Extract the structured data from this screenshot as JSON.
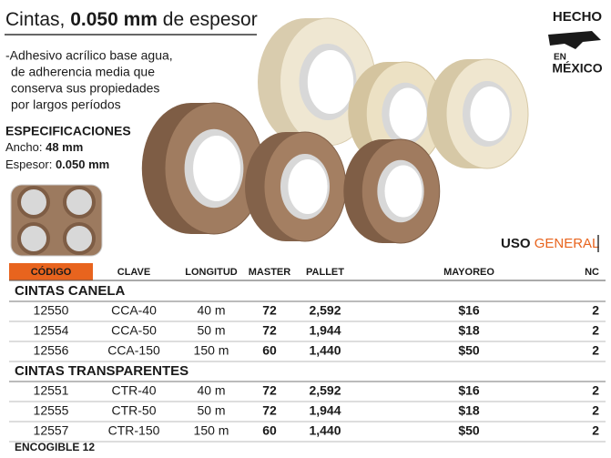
{
  "header": {
    "title": [
      "Cintas,",
      "0.050 mm",
      "de espesor"
    ]
  },
  "description": [
    "-Adhesivo acrílico base agua,",
    "de adherencia media que",
    "conserva sus propiedades",
    "por largos períodos"
  ],
  "specs": {
    "title": "ESPECIFICACIONES",
    "items": [
      {
        "label": "Ancho:",
        "value": "48 mm"
      },
      {
        "label": "Espesor:",
        "value": "0.050 mm"
      }
    ]
  },
  "badge": {
    "top": "HECHO",
    "mid": "EN",
    "bottom": "MÉXICO"
  },
  "usage": {
    "label": "USO",
    "value": "GENERAL"
  },
  "table": {
    "columns": [
      "CÓDIGO",
      "CLAVE",
      "LONGITUD",
      "MASTER",
      "PALLET",
      "MAYOREO",
      "NC"
    ],
    "groups": [
      {
        "title": "CINTAS CANELA",
        "rows": [
          [
            "12550",
            "CCA-40",
            "40 m",
            "72",
            "2,592",
            "$16",
            "2"
          ],
          [
            "12554",
            "CCA-50",
            "50 m",
            "72",
            "1,944",
            "$18",
            "2"
          ],
          [
            "12556",
            "CCA-150",
            "150 m",
            "60",
            "1,440",
            "$50",
            "2"
          ]
        ]
      },
      {
        "title": "CINTAS TRANSPARENTES",
        "rows": [
          [
            "12551",
            "CTR-40",
            "40 m",
            "72",
            "2,592",
            "$16",
            "2"
          ],
          [
            "12555",
            "CTR-50",
            "50 m",
            "72",
            "1,944",
            "$18",
            "2"
          ],
          [
            "12557",
            "CTR-150",
            "150 m",
            "60",
            "1,440",
            "$50",
            "2"
          ]
        ]
      }
    ]
  },
  "footer": "ENCOGIBLE 12"
}
